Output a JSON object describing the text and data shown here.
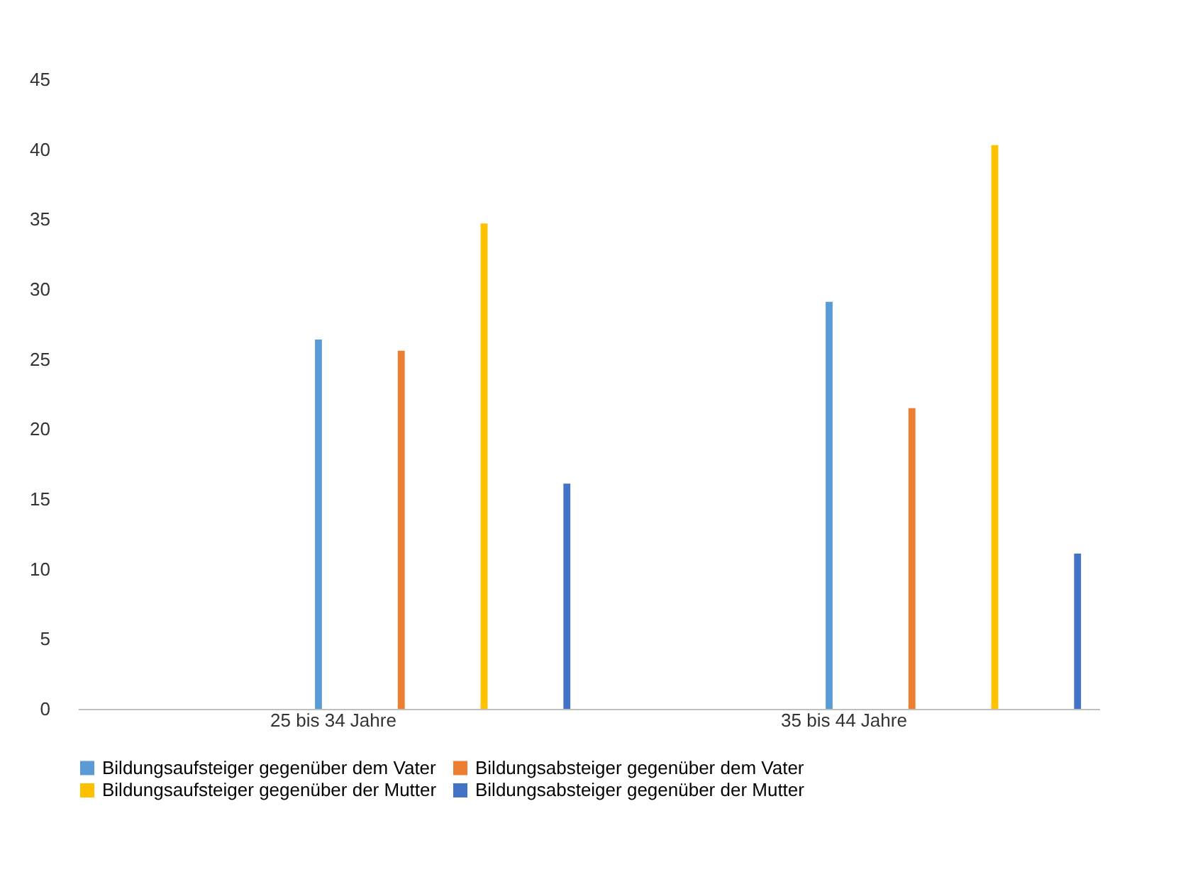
{
  "chart_data": {
    "type": "bar",
    "categories": [
      "25 bis 34 Jahre",
      "35 bis 44 Jahre"
    ],
    "series": [
      {
        "name": "Bildungsaufsteiger gegenüber dem Vater",
        "color": "#5b9bd5",
        "values": [
          26.4,
          29.1
        ]
      },
      {
        "name": "Bildungsabsteiger gegenüber dem Vater",
        "color": "#ed7d31",
        "values": [
          25.6,
          21.5
        ]
      },
      {
        "name": "Bildungsaufsteiger gegenüber der Mutter",
        "color": "#ffc000",
        "values": [
          34.7,
          40.3
        ]
      },
      {
        "name": "Bildungsabsteiger gegenüber der Mutter",
        "color": "#4472c4",
        "values": [
          16.1,
          11.1
        ]
      }
    ],
    "ylim": [
      0,
      45
    ],
    "yticks": [
      0,
      5,
      10,
      15,
      20,
      25,
      30,
      35,
      40,
      45
    ],
    "grid": false,
    "legend": "bottom"
  }
}
